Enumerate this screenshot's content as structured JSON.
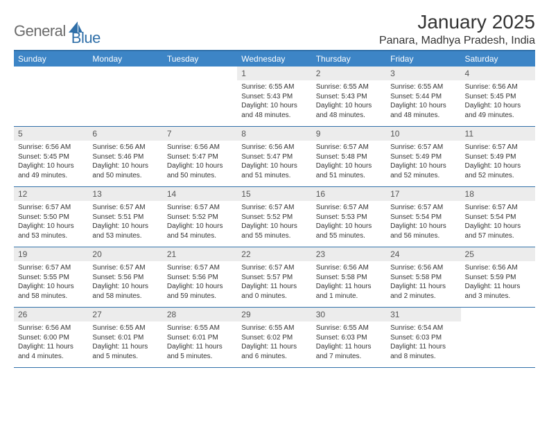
{
  "logo": {
    "part1": "General",
    "part2": "Blue"
  },
  "title": "January 2025",
  "location": "Panara, Madhya Pradesh, India",
  "colors": {
    "header_bg": "#3d85c6",
    "header_border": "#2f6fa8",
    "daynum_bg": "#ececec",
    "text": "#333333",
    "logo_gray": "#6a6a6a",
    "logo_blue": "#2f6fa8",
    "white": "#ffffff"
  },
  "day_names": [
    "Sunday",
    "Monday",
    "Tuesday",
    "Wednesday",
    "Thursday",
    "Friday",
    "Saturday"
  ],
  "weeks": [
    [
      {
        "n": "",
        "sr": "",
        "ss": "",
        "dl": ""
      },
      {
        "n": "",
        "sr": "",
        "ss": "",
        "dl": ""
      },
      {
        "n": "",
        "sr": "",
        "ss": "",
        "dl": ""
      },
      {
        "n": "1",
        "sr": "6:55 AM",
        "ss": "5:43 PM",
        "dl": "10 hours and 48 minutes."
      },
      {
        "n": "2",
        "sr": "6:55 AM",
        "ss": "5:43 PM",
        "dl": "10 hours and 48 minutes."
      },
      {
        "n": "3",
        "sr": "6:55 AM",
        "ss": "5:44 PM",
        "dl": "10 hours and 48 minutes."
      },
      {
        "n": "4",
        "sr": "6:56 AM",
        "ss": "5:45 PM",
        "dl": "10 hours and 49 minutes."
      }
    ],
    [
      {
        "n": "5",
        "sr": "6:56 AM",
        "ss": "5:45 PM",
        "dl": "10 hours and 49 minutes."
      },
      {
        "n": "6",
        "sr": "6:56 AM",
        "ss": "5:46 PM",
        "dl": "10 hours and 50 minutes."
      },
      {
        "n": "7",
        "sr": "6:56 AM",
        "ss": "5:47 PM",
        "dl": "10 hours and 50 minutes."
      },
      {
        "n": "8",
        "sr": "6:56 AM",
        "ss": "5:47 PM",
        "dl": "10 hours and 51 minutes."
      },
      {
        "n": "9",
        "sr": "6:57 AM",
        "ss": "5:48 PM",
        "dl": "10 hours and 51 minutes."
      },
      {
        "n": "10",
        "sr": "6:57 AM",
        "ss": "5:49 PM",
        "dl": "10 hours and 52 minutes."
      },
      {
        "n": "11",
        "sr": "6:57 AM",
        "ss": "5:49 PM",
        "dl": "10 hours and 52 minutes."
      }
    ],
    [
      {
        "n": "12",
        "sr": "6:57 AM",
        "ss": "5:50 PM",
        "dl": "10 hours and 53 minutes."
      },
      {
        "n": "13",
        "sr": "6:57 AM",
        "ss": "5:51 PM",
        "dl": "10 hours and 53 minutes."
      },
      {
        "n": "14",
        "sr": "6:57 AM",
        "ss": "5:52 PM",
        "dl": "10 hours and 54 minutes."
      },
      {
        "n": "15",
        "sr": "6:57 AM",
        "ss": "5:52 PM",
        "dl": "10 hours and 55 minutes."
      },
      {
        "n": "16",
        "sr": "6:57 AM",
        "ss": "5:53 PM",
        "dl": "10 hours and 55 minutes."
      },
      {
        "n": "17",
        "sr": "6:57 AM",
        "ss": "5:54 PM",
        "dl": "10 hours and 56 minutes."
      },
      {
        "n": "18",
        "sr": "6:57 AM",
        "ss": "5:54 PM",
        "dl": "10 hours and 57 minutes."
      }
    ],
    [
      {
        "n": "19",
        "sr": "6:57 AM",
        "ss": "5:55 PM",
        "dl": "10 hours and 58 minutes."
      },
      {
        "n": "20",
        "sr": "6:57 AM",
        "ss": "5:56 PM",
        "dl": "10 hours and 58 minutes."
      },
      {
        "n": "21",
        "sr": "6:57 AM",
        "ss": "5:56 PM",
        "dl": "10 hours and 59 minutes."
      },
      {
        "n": "22",
        "sr": "6:57 AM",
        "ss": "5:57 PM",
        "dl": "11 hours and 0 minutes."
      },
      {
        "n": "23",
        "sr": "6:56 AM",
        "ss": "5:58 PM",
        "dl": "11 hours and 1 minute."
      },
      {
        "n": "24",
        "sr": "6:56 AM",
        "ss": "5:58 PM",
        "dl": "11 hours and 2 minutes."
      },
      {
        "n": "25",
        "sr": "6:56 AM",
        "ss": "5:59 PM",
        "dl": "11 hours and 3 minutes."
      }
    ],
    [
      {
        "n": "26",
        "sr": "6:56 AM",
        "ss": "6:00 PM",
        "dl": "11 hours and 4 minutes."
      },
      {
        "n": "27",
        "sr": "6:55 AM",
        "ss": "6:01 PM",
        "dl": "11 hours and 5 minutes."
      },
      {
        "n": "28",
        "sr": "6:55 AM",
        "ss": "6:01 PM",
        "dl": "11 hours and 5 minutes."
      },
      {
        "n": "29",
        "sr": "6:55 AM",
        "ss": "6:02 PM",
        "dl": "11 hours and 6 minutes."
      },
      {
        "n": "30",
        "sr": "6:55 AM",
        "ss": "6:03 PM",
        "dl": "11 hours and 7 minutes."
      },
      {
        "n": "31",
        "sr": "6:54 AM",
        "ss": "6:03 PM",
        "dl": "11 hours and 8 minutes."
      },
      {
        "n": "",
        "sr": "",
        "ss": "",
        "dl": ""
      }
    ]
  ],
  "labels": {
    "sunrise": "Sunrise:",
    "sunset": "Sunset:",
    "daylight": "Daylight:"
  }
}
